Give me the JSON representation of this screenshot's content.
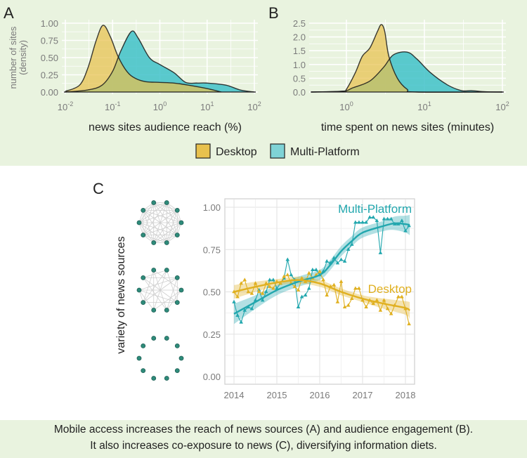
{
  "colors": {
    "panel_bg": "#e9f3df",
    "desktop_fill": "#e8c14e",
    "desktop_line": "#e0b020",
    "multi_fill": "#3fc1c9",
    "multi_line": "#22a7ae",
    "node": "#2e8b7a"
  },
  "legend": {
    "desktop": "Desktop",
    "multi": "Multi-Platform"
  },
  "caption": {
    "line1": "Mobile access increases the reach of news sources (A) and audience engagement (B).",
    "line2": "It also increases co-exposure to news (C), diversifying information diets."
  },
  "chart_data": [
    {
      "panel": "A",
      "type": "area",
      "xscale": "log",
      "xlim": [
        0.01,
        100
      ],
      "ylim": [
        0,
        1
      ],
      "xlabel": "news sites audience reach (%)",
      "ylabel": "number of sites (density)",
      "xticks": [
        {
          "base": "10",
          "exp": "-2",
          "v": 0.01
        },
        {
          "base": "10",
          "exp": "-1",
          "v": 0.1
        },
        {
          "base": "10",
          "exp": "0",
          "v": 1
        },
        {
          "base": "10",
          "exp": "1",
          "v": 10
        },
        {
          "base": "10",
          "exp": "2",
          "v": 100
        }
      ],
      "yticks": [
        "0.00",
        "0.25",
        "0.50",
        "0.75",
        "1.00"
      ],
      "grid": true,
      "series": [
        {
          "name": "Desktop",
          "x": [
            0.01,
            0.02,
            0.03,
            0.045,
            0.063,
            0.09,
            0.13,
            0.2,
            0.3,
            0.5,
            1,
            2,
            4,
            10,
            20
          ],
          "y": [
            0.01,
            0.1,
            0.35,
            0.75,
            0.97,
            0.8,
            0.52,
            0.3,
            0.2,
            0.15,
            0.14,
            0.13,
            0.1,
            0.05,
            0.0
          ]
        },
        {
          "name": "Multi-Platform",
          "x": [
            0.01,
            0.03,
            0.06,
            0.1,
            0.15,
            0.25,
            0.35,
            0.6,
            1,
            2,
            3.5,
            6,
            10,
            25,
            50,
            100
          ],
          "y": [
            0.0,
            0.03,
            0.1,
            0.3,
            0.6,
            0.88,
            0.78,
            0.5,
            0.4,
            0.28,
            0.14,
            0.13,
            0.13,
            0.1,
            0.03,
            0.0
          ]
        }
      ]
    },
    {
      "panel": "B",
      "type": "area",
      "xscale": "log",
      "xlim": [
        0.35,
        100
      ],
      "ylim": [
        0,
        2.5
      ],
      "xlabel": "time spent on news sites (minutes)",
      "xticks": [
        {
          "base": "10",
          "exp": "0",
          "v": 1
        },
        {
          "base": "10",
          "exp": "1",
          "v": 10
        },
        {
          "base": "10",
          "exp": "2",
          "v": 100
        }
      ],
      "yticks": [
        "0.0",
        "0.5",
        "1.0",
        "1.5",
        "2.0",
        "2.5"
      ],
      "grid": true,
      "series": [
        {
          "name": "Desktop",
          "x": [
            0.35,
            0.9,
            1.0,
            1.3,
            1.6,
            2.0,
            2.5,
            2.8,
            3.1,
            3.5,
            4.5,
            6,
            8,
            100
          ],
          "y": [
            0,
            0.03,
            0.1,
            0.7,
            1.3,
            1.6,
            2.2,
            2.45,
            2.2,
            1.3,
            0.5,
            0.1,
            0.0,
            0
          ]
        },
        {
          "name": "Multi-Platform",
          "x": [
            0.35,
            0.9,
            1.2,
            2,
            3,
            4,
            6,
            8,
            12,
            20,
            30,
            40,
            60,
            100
          ],
          "y": [
            0,
            0.03,
            0.15,
            0.4,
            0.9,
            1.35,
            1.45,
            1.2,
            0.7,
            0.25,
            0.05,
            0.05,
            0.01,
            0
          ]
        }
      ]
    },
    {
      "panel": "C",
      "type": "line",
      "xlim": [
        2014,
        2018
      ],
      "ylim": [
        0,
        1
      ],
      "ylabel": "variety of news sources",
      "xticks": [
        "2014",
        "2015",
        "2016",
        "2017",
        "2018"
      ],
      "yticks": [
        "0.00",
        "0.25",
        "0.50",
        "0.75",
        "1.00"
      ],
      "grid": true,
      "x_start": 2014,
      "x_step_months": 1,
      "series": [
        {
          "name": "Multi-Platform",
          "values": [
            0.44,
            0.36,
            0.32,
            0.39,
            0.41,
            0.4,
            0.45,
            0.51,
            0.45,
            0.5,
            0.57,
            0.57,
            0.52,
            0.55,
            0.58,
            0.69,
            0.6,
            0.57,
            0.41,
            0.47,
            0.48,
            0.52,
            0.63,
            0.63,
            0.6,
            0.62,
            0.68,
            0.67,
            0.7,
            0.67,
            0.69,
            0.68,
            0.75,
            0.78,
            0.91,
            0.91,
            0.91,
            0.91,
            0.94,
            0.94,
            0.92,
            0.73,
            0.93,
            0.93,
            0.93,
            0.9,
            0.9,
            0.92,
            0.86,
            0.89
          ],
          "smooth": {
            "x": [
              2014,
              2014.5,
              2015,
              2015.5,
              2016,
              2016.25,
              2016.5,
              2016.75,
              2017,
              2017.5,
              2017.75,
              2018,
              2018.1
            ],
            "y": [
              0.37,
              0.44,
              0.51,
              0.56,
              0.6,
              0.66,
              0.74,
              0.8,
              0.85,
              0.89,
              0.905,
              0.9,
              0.895
            ],
            "ci": [
              0.06,
              0.04,
              0.03,
              0.03,
              0.03,
              0.03,
              0.03,
              0.03,
              0.03,
              0.03,
              0.04,
              0.05,
              0.06
            ]
          }
        },
        {
          "name": "Desktop",
          "values": [
            0.5,
            0.47,
            0.55,
            0.57,
            0.5,
            0.49,
            0.55,
            0.5,
            0.49,
            0.55,
            0.53,
            0.52,
            0.56,
            0.55,
            0.59,
            0.6,
            0.55,
            0.53,
            0.51,
            0.58,
            0.56,
            0.61,
            0.58,
            0.6,
            0.62,
            0.57,
            0.48,
            0.53,
            0.54,
            0.44,
            0.56,
            0.41,
            0.42,
            0.46,
            0.52,
            0.52,
            0.45,
            0.41,
            0.45,
            0.43,
            0.45,
            0.39,
            0.45,
            0.4,
            0.37,
            0.42,
            0.47,
            0.47,
            0.4,
            0.31
          ],
          "smooth": {
            "x": [
              2014,
              2014.5,
              2015,
              2015.5,
              2016,
              2016.5,
              2017,
              2017.5,
              2018,
              2018.1
            ],
            "y": [
              0.5,
              0.53,
              0.555,
              0.57,
              0.55,
              0.5,
              0.46,
              0.43,
              0.405,
              0.39
            ],
            "ci": [
              0.04,
              0.03,
              0.02,
              0.02,
              0.02,
              0.02,
              0.02,
              0.03,
              0.04,
              0.05
            ]
          }
        }
      ]
    }
  ]
}
